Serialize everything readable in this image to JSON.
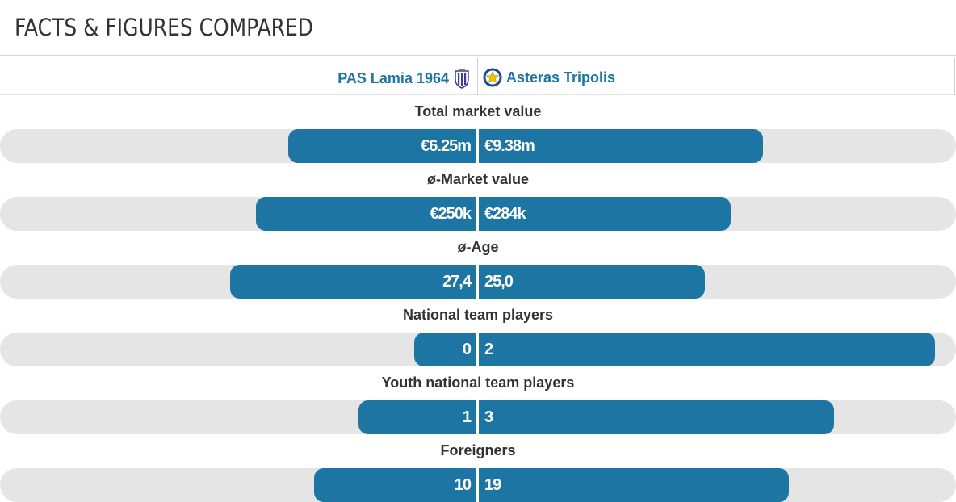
{
  "header": {
    "title": "FACTS & FIGURES COMPARED"
  },
  "teams": {
    "left": {
      "name": "PAS Lamia 1964",
      "crest_icon": "pas-lamia-crest-icon"
    },
    "right": {
      "name": "Asteras Tripolis",
      "crest_icon": "asteras-tripolis-crest-icon"
    }
  },
  "colors": {
    "bar": "#1c75a2",
    "track": "#e5e5e5",
    "team_link": "#1d75a3"
  },
  "metrics": [
    {
      "label": "Total market value",
      "left_value": "€6.25m",
      "right_value": "€9.38m",
      "left_share": 0.4,
      "right_share": 0.6
    },
    {
      "label": "ø-Market value",
      "left_value": "€250k",
      "right_value": "€284k",
      "left_share": 0.468,
      "right_share": 0.532
    },
    {
      "label": "ø-Age",
      "left_value": "27,4",
      "right_value": "25,0",
      "left_share": 0.523,
      "right_share": 0.477
    },
    {
      "label": "National team players",
      "left_value": "0",
      "right_value": "2",
      "left_share": 0.0,
      "right_share": 1.0
    },
    {
      "label": "Youth national team players",
      "left_value": "1",
      "right_value": "3",
      "left_share": 0.25,
      "right_share": 0.75
    },
    {
      "label": "Foreigners",
      "left_value": "10",
      "right_value": "19",
      "left_share": 0.345,
      "right_share": 0.655
    }
  ]
}
